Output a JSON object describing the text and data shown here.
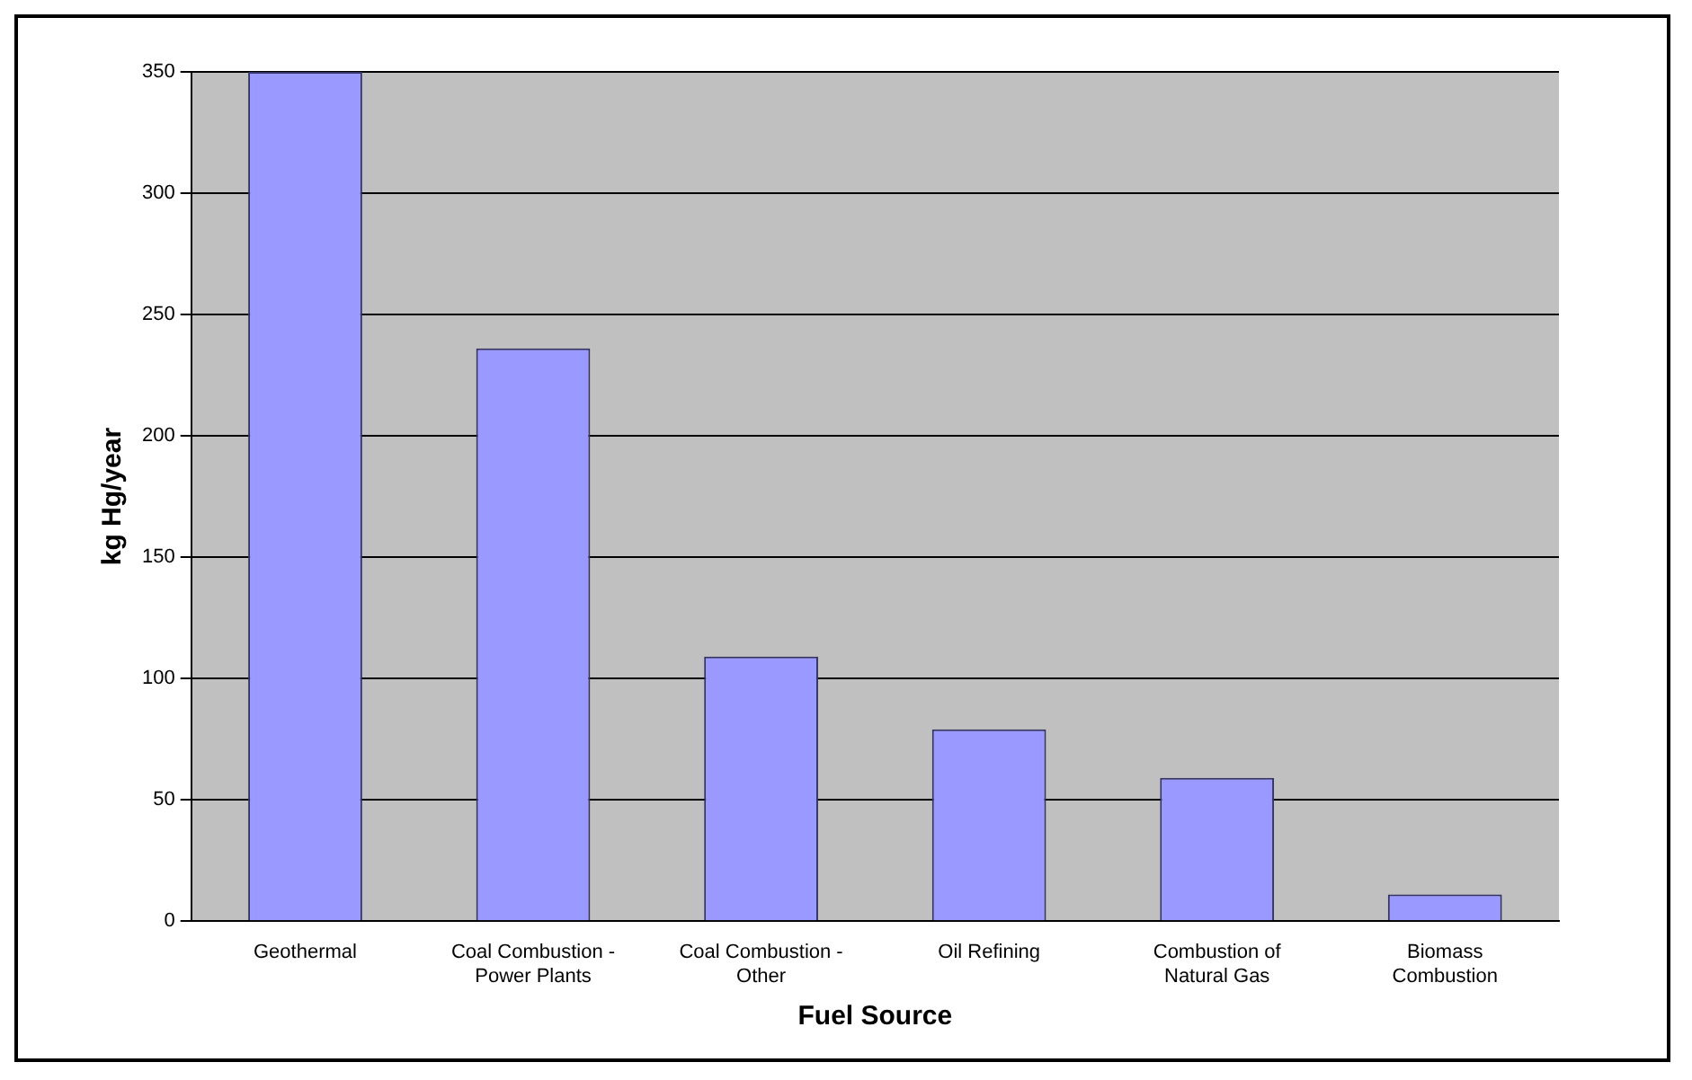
{
  "chart_data": {
    "type": "bar",
    "xlabel": "Fuel Source",
    "ylabel": "kg Hg/year",
    "categories": [
      "Geothermal",
      "Coal Combustion - Power Plants",
      "Coal Combustion - Other",
      "Oil Refining",
      "Combustion of Natural Gas",
      "Biomass Combustion"
    ],
    "values": [
      350,
      236,
      109,
      79,
      59,
      11
    ],
    "color": "#9999ff",
    "ylim": [
      0,
      350
    ],
    "yticks": [
      0,
      50,
      100,
      150,
      200,
      250,
      300,
      350
    ],
    "grid": "y",
    "legend": false
  }
}
